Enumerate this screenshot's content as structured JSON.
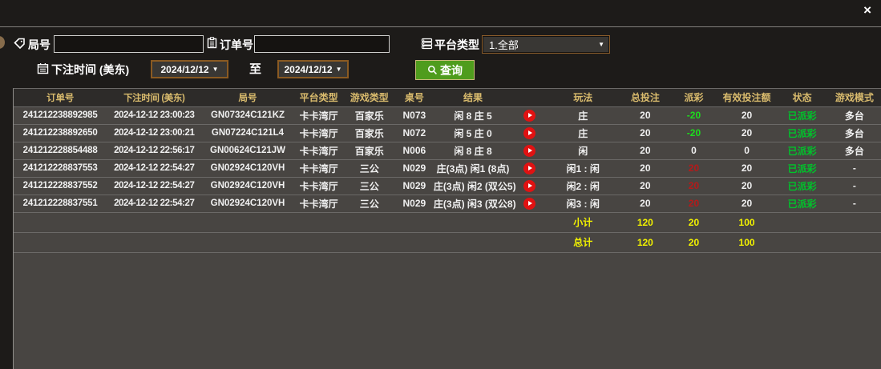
{
  "window": {
    "close_label": "×"
  },
  "filters": {
    "game_no_label": "局号",
    "game_no_value": "",
    "order_no_label": "订单号",
    "order_no_value": "",
    "platform_type_label": "平台类型",
    "platform_type_value": "1.全部",
    "bet_time_label": "下注时间 (美东)",
    "date_from": "2024/12/12",
    "to_label": "至",
    "date_to": "2024/12/12",
    "query_label": "查询",
    "dropdown_arrow": "▼"
  },
  "table": {
    "headers": {
      "order_no": "订单号",
      "bet_time": "下注时间 (美东)",
      "game_no": "局号",
      "platform": "平台类型",
      "game_type": "游戏类型",
      "table_no": "桌号",
      "result": "结果",
      "play": "",
      "play_type": "玩法",
      "total_bet": "总投注",
      "payout": "派彩",
      "valid_bet": "有效投注额",
      "status": "状态",
      "game_mode": "游戏模式"
    },
    "rows": [
      {
        "order_no": "241212238892985",
        "bet_time": "2024-12-12 23:00:23",
        "game_no": "GN07324C121KZ",
        "platform": "卡卡湾厅",
        "game_type": "百家乐",
        "table_no": "N073",
        "result": "闲 8 庄 5",
        "has_replay": true,
        "play_type": "庄",
        "total_bet": "20",
        "payout": "-20",
        "payout_color": "green",
        "valid_bet": "20",
        "status": "已派彩",
        "game_mode": "多台"
      },
      {
        "order_no": "241212238892650",
        "bet_time": "2024-12-12 23:00:21",
        "game_no": "GN07224C121L4",
        "platform": "卡卡湾厅",
        "game_type": "百家乐",
        "table_no": "N072",
        "result": "闲 5 庄 0",
        "has_replay": true,
        "play_type": "庄",
        "total_bet": "20",
        "payout": "-20",
        "payout_color": "green",
        "valid_bet": "20",
        "status": "已派彩",
        "game_mode": "多台"
      },
      {
        "order_no": "241212228854488",
        "bet_time": "2024-12-12 22:56:17",
        "game_no": "GN00624C121JW",
        "platform": "卡卡湾厅",
        "game_type": "百家乐",
        "table_no": "N006",
        "result": "闲 8 庄 8",
        "has_replay": true,
        "play_type": "闲",
        "total_bet": "20",
        "payout": "0",
        "payout_color": "white",
        "valid_bet": "0",
        "status": "已派彩",
        "game_mode": "多台"
      },
      {
        "order_no": "241212228837553",
        "bet_time": "2024-12-12 22:54:27",
        "game_no": "GN02924C120VH",
        "platform": "卡卡湾厅",
        "game_type": "三公",
        "table_no": "N029",
        "result": "庄(3点) 闲1 (8点)",
        "has_replay": true,
        "play_type": "闲1 : 闲",
        "total_bet": "20",
        "payout": "20",
        "payout_color": "red",
        "valid_bet": "20",
        "status": "已派彩",
        "game_mode": "-"
      },
      {
        "order_no": "241212228837552",
        "bet_time": "2024-12-12 22:54:27",
        "game_no": "GN02924C120VH",
        "platform": "卡卡湾厅",
        "game_type": "三公",
        "table_no": "N029",
        "result": "庄(3点) 闲2 (双公5)",
        "has_replay": true,
        "play_type": "闲2 : 闲",
        "total_bet": "20",
        "payout": "20",
        "payout_color": "red",
        "valid_bet": "20",
        "status": "已派彩",
        "game_mode": "-"
      },
      {
        "order_no": "241212228837551",
        "bet_time": "2024-12-12 22:54:27",
        "game_no": "GN02924C120VH",
        "platform": "卡卡湾厅",
        "game_type": "三公",
        "table_no": "N029",
        "result": "庄(3点) 闲3 (双公8)",
        "has_replay": true,
        "play_type": "闲3 : 闲",
        "total_bet": "20",
        "payout": "20",
        "payout_color": "red",
        "valid_bet": "20",
        "status": "已派彩",
        "game_mode": "-"
      }
    ],
    "subtotal": {
      "label": "小计",
      "total_bet": "120",
      "payout": "20",
      "valid_bet": "100"
    },
    "total": {
      "label": "总计",
      "total_bet": "120",
      "payout": "20",
      "valid_bet": "100"
    }
  },
  "colors": {
    "header_gold": "#d9bb6d",
    "payout_green": "#1ddd1d",
    "payout_red": "#b51a1a",
    "status_green": "#00c32b",
    "summary_yellow": "#f2f200",
    "query_button_green": "#4f9c1d",
    "date_border_brown": "#8a5a22",
    "replay_red": "#e01212",
    "row_gray": "#484542",
    "header_row_dark": "#2d2b29"
  }
}
